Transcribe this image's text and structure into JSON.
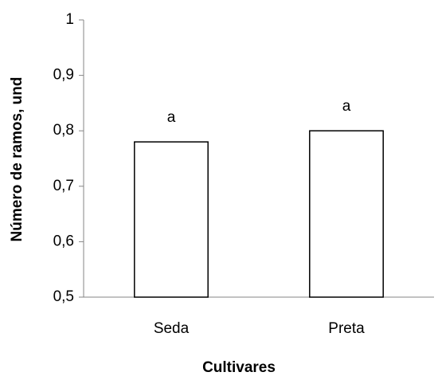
{
  "chart_data": {
    "type": "bar",
    "x_label": "Cultivares",
    "y_label": "Número de ramos, und",
    "categories": [
      "Seda",
      "Preta"
    ],
    "values": [
      0.78,
      0.8
    ],
    "annotations": [
      "a",
      "a"
    ],
    "color": "#ffffff",
    "edge_color": "#000000",
    "ylim": [
      0.5,
      1
    ],
    "yticks": [
      {
        "value": 0.5,
        "label": "0,5"
      },
      {
        "value": 0.6,
        "label": "0,6"
      },
      {
        "value": 0.7,
        "label": "0,7"
      },
      {
        "value": 0.8,
        "label": "0,8"
      },
      {
        "value": 0.9,
        "label": "0,9"
      },
      1
    ],
    "grid": false
  }
}
